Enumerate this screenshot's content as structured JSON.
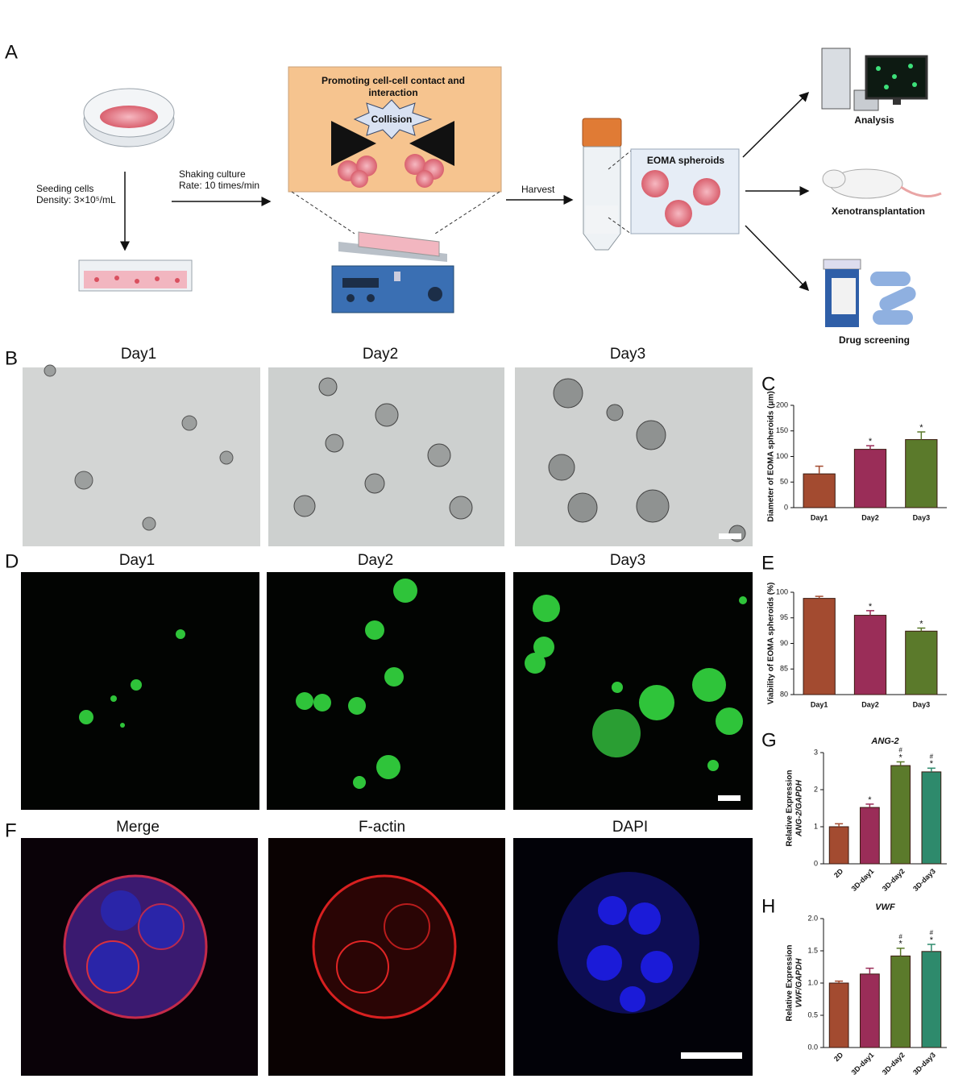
{
  "panel_labels": [
    "A",
    "B",
    "D",
    "F"
  ],
  "panel_a": {
    "seeding": "Seeding cells",
    "density": "Density: 3×10⁵/mL",
    "shaking": "Shaking culture",
    "rate": "Rate: 10 times/min",
    "box_title": [
      "Promoting cell-cell contact and",
      "interaction"
    ],
    "collision": "Collision",
    "harvest": "Harvest",
    "spheroids": "EOMA spheroids",
    "outcomes": [
      "Analysis",
      "Xenotransplantation",
      "Drug screening"
    ]
  },
  "panel_b": {
    "titles": [
      "Day1",
      "Day2",
      "Day3"
    ]
  },
  "panel_d": {
    "titles": [
      "Day1",
      "Day2",
      "Day3"
    ]
  },
  "panel_f": {
    "titles": [
      "Merge",
      "F-actin",
      "DAPI"
    ]
  },
  "chart_data": [
    {
      "type": "bar",
      "panel": "C",
      "ylabel": "Diameter of EOMA spheroids (μm)",
      "categories": [
        "Day1",
        "Day2",
        "Day3"
      ],
      "values": [
        66,
        114,
        133
      ],
      "errors": [
        15,
        7,
        15
      ],
      "colors": [
        "#a34b30",
        "#9a2d58",
        "#5b7a2b"
      ],
      "stars": [
        null,
        "*",
        "*"
      ],
      "ylim": [
        0,
        200
      ],
      "yticks": [
        0,
        50,
        100,
        150,
        200
      ]
    },
    {
      "type": "bar",
      "panel": "E",
      "ylabel": "Viability of EOMA spheroids (%)",
      "categories": [
        "Day1",
        "Day2",
        "Day3"
      ],
      "values": [
        98.8,
        95.5,
        92.4
      ],
      "errors": [
        0.4,
        0.9,
        0.6
      ],
      "colors": [
        "#a34b30",
        "#9a2d58",
        "#5b7a2b"
      ],
      "stars": [
        null,
        "*",
        "*"
      ],
      "ylim": [
        80,
        100
      ],
      "yticks": [
        80,
        85,
        90,
        95,
        100
      ]
    },
    {
      "type": "bar",
      "panel": "G",
      "title": "ANG-2",
      "ylabel": "Relative Expression",
      "ylabel2": "ANG-2/GAPDH",
      "categories": [
        "2D",
        "3D-day1",
        "3D-day2",
        "3D-day3"
      ],
      "values": [
        1.0,
        1.52,
        2.65,
        2.48
      ],
      "errors": [
        0.08,
        0.09,
        0.1,
        0.1
      ],
      "colors": [
        "#a34b30",
        "#9a2d58",
        "#5b7a2b",
        "#2e8a6c"
      ],
      "stars": [
        null,
        "*",
        "*",
        "*"
      ],
      "hashes": [
        null,
        null,
        "#",
        "#"
      ],
      "ylim": [
        0,
        3
      ],
      "yticks": [
        0,
        1,
        2,
        3
      ]
    },
    {
      "type": "bar",
      "panel": "H",
      "title": "VWF",
      "ylabel": "Relative Expression",
      "ylabel2": "VWF/GAPDH",
      "categories": [
        "2D",
        "3D-day1",
        "3D-day2",
        "3D-day3"
      ],
      "values": [
        1.0,
        1.14,
        1.42,
        1.49
      ],
      "errors": [
        0.03,
        0.09,
        0.12,
        0.11
      ],
      "colors": [
        "#a34b30",
        "#9a2d58",
        "#5b7a2b",
        "#2e8a6c"
      ],
      "stars": [
        null,
        null,
        "*",
        "*"
      ],
      "hashes": [
        null,
        null,
        "#",
        "#"
      ],
      "ylim": [
        0,
        2
      ],
      "yticks": [
        {
          "value": 0,
          "label": "0.0"
        },
        {
          "value": 0.5,
          "label": "0.5"
        },
        {
          "value": 1,
          "label": "1.0"
        },
        {
          "value": 1.5,
          "label": "1.5"
        },
        {
          "value": 2,
          "label": "2.0"
        }
      ]
    }
  ]
}
